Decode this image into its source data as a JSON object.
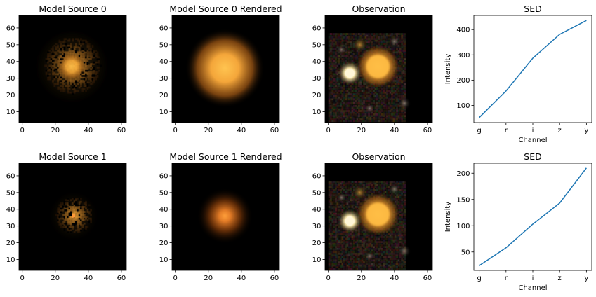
{
  "figure": {
    "rows": [
      {
        "panels": [
          {
            "title": "Model Source 0",
            "kind": "image",
            "variant": "model0"
          },
          {
            "title": "Model Source 0 Rendered",
            "kind": "image",
            "variant": "render0"
          },
          {
            "title": "Observation",
            "kind": "image",
            "variant": "obs"
          },
          {
            "title": "SED",
            "kind": "sed",
            "chart_index": 0
          }
        ]
      },
      {
        "panels": [
          {
            "title": "Model Source 1",
            "kind": "image",
            "variant": "model1"
          },
          {
            "title": "Model Source 1 Rendered",
            "kind": "image",
            "variant": "render1"
          },
          {
            "title": "Observation",
            "kind": "image",
            "variant": "obs"
          },
          {
            "title": "SED",
            "kind": "sed",
            "chart_index": 1
          }
        ]
      }
    ],
    "image_axes": {
      "x_ticks": [
        "0",
        "20",
        "40",
        "60"
      ],
      "x_tick_values": [
        0,
        20,
        40,
        60
      ],
      "y_ticks": [
        "10",
        "20",
        "30",
        "40",
        "50",
        "60"
      ],
      "y_tick_values": [
        10,
        20,
        30,
        40,
        50,
        60
      ],
      "xlim": [
        -2,
        63
      ],
      "ylim": [
        3.5,
        67.5
      ]
    },
    "colors": {
      "line": "#1f77b4",
      "background": "#000000",
      "source_core": "#ffc04a",
      "source_halo": "#ff9a1e",
      "compact_source": "#fff4dc"
    }
  },
  "chart_data": [
    {
      "type": "line",
      "title": "SED",
      "xlabel": "Channel",
      "ylabel": "Intensity",
      "categories": [
        "g",
        "r",
        "i",
        "z",
        "y"
      ],
      "series": [
        {
          "values": [
            52,
            157,
            287,
            381,
            436
          ]
        }
      ],
      "yticks": [
        100,
        200,
        300,
        400
      ],
      "ylim": [
        32,
        456
      ]
    },
    {
      "type": "line",
      "title": "SED",
      "xlabel": "Channel",
      "ylabel": "Intensity",
      "categories": [
        "g",
        "r",
        "i",
        "z",
        "y"
      ],
      "series": [
        {
          "values": [
            24,
            58,
            103,
            143,
            210
          ]
        }
      ],
      "yticks": [
        50,
        100,
        150,
        200
      ],
      "ylim": [
        15,
        219
      ]
    }
  ]
}
